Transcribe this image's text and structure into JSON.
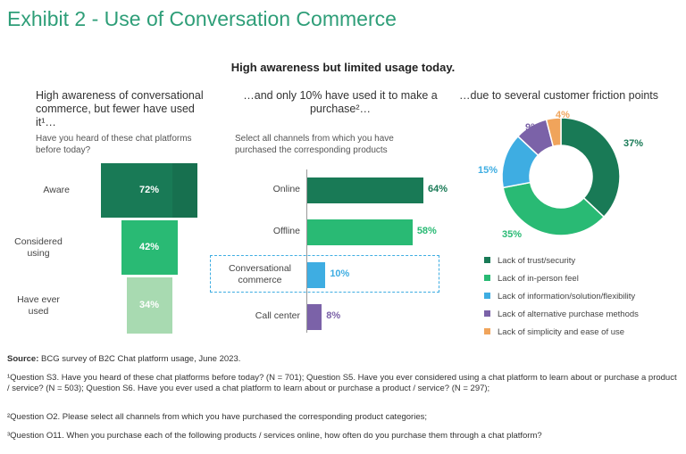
{
  "header": {
    "title": "Exhibit 2 - Use of Conversation Commerce",
    "subtitle": "High awareness but limited usage today."
  },
  "chart_data": [
    {
      "type": "bar",
      "subtype": "funnel",
      "title": "High awareness of conversational commerce, but fewer have used it¹…",
      "question": "Have you heard of these chat platforms before today?",
      "categories": [
        "Aware",
        "Considered using",
        "Have ever used"
      ],
      "values": [
        72,
        42,
        34
      ],
      "value_labels": [
        "72%",
        "42%",
        "34%"
      ],
      "colors": [
        "#197a56",
        "#29ba74",
        "#a8dab1"
      ]
    },
    {
      "type": "bar",
      "orientation": "horizontal",
      "title": "…and only 10% have used it to make a purchase²…",
      "question": "Select all channels from which you have purchased the corresponding products",
      "categories": [
        "Online",
        "Offline",
        "Conversational commerce",
        "Call center"
      ],
      "values": [
        64,
        58,
        10,
        8
      ],
      "value_labels": [
        "64%",
        "58%",
        "10%",
        "8%"
      ],
      "colors": [
        "#197a56",
        "#29ba74",
        "#3eade2",
        "#7b62a8"
      ],
      "highlighted_category": "Conversational commerce"
    },
    {
      "type": "pie",
      "subtype": "donut",
      "title": "…due to several customer friction points",
      "categories": [
        "Lack of trust/security",
        "Lack of in-person feel",
        "Lack of information/solution/flexibility",
        "Lack of alternative purchase methods",
        "Lack of simplicity and ease of use"
      ],
      "values": [
        37,
        35,
        15,
        9,
        4
      ],
      "value_labels": [
        "37%",
        "35%",
        "15%",
        "9%",
        "4%"
      ],
      "colors": [
        "#197a56",
        "#29ba74",
        "#3eade2",
        "#7b62a8",
        "#f0a45b"
      ],
      "legend": "bottom"
    }
  ],
  "footer": {
    "source_label": "Source:",
    "source_text": "BCG survey of B2C Chat platform usage, June 2023.",
    "note1": "¹Question S3. Have you heard of these chat platforms before today? (N = 701); Question S5. Have you ever considered using a chat platform to learn about or purchase a product / service? (N = 503); Question S6. Have you ever used a chat platform to learn about or purchase a product / service? (N = 297);",
    "note2": "²Question O2. Please select all channels from which you have purchased the corresponding product categories;",
    "note3": "³Question O11. When you purchase each of the following products / services online, how often do you purchase them through a chat platform?"
  }
}
